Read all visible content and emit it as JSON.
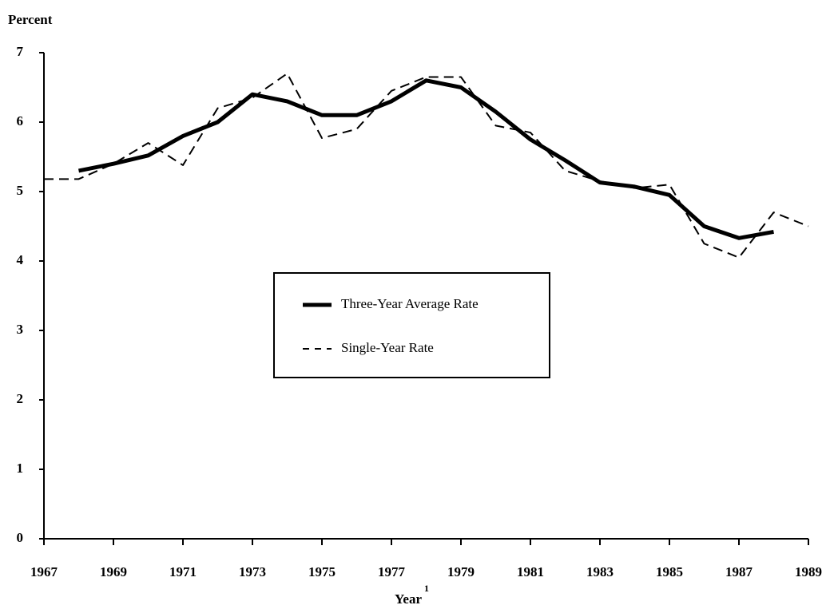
{
  "chart_data": {
    "type": "line",
    "y_label": "Percent",
    "x_label": "Year",
    "x_label_footnote": "1",
    "xlim": [
      1967,
      1989
    ],
    "xticks": [
      1967,
      1969,
      1971,
      1973,
      1975,
      1977,
      1979,
      1981,
      1983,
      1985,
      1987,
      1989
    ],
    "ylim": [
      0,
      7
    ],
    "yticks": [
      0,
      1,
      2,
      3,
      4,
      5,
      6,
      7
    ],
    "grid": false,
    "legend": "center",
    "series": [
      {
        "name": "Three-Year Average Rate",
        "color": "#000000",
        "style": "solid",
        "x": [
          1968,
          1969,
          1970,
          1971,
          1972,
          1973,
          1974,
          1975,
          1976,
          1977,
          1978,
          1979,
          1980,
          1981,
          1982,
          1983,
          1984,
          1985,
          1986,
          1987,
          1988
        ],
        "values": [
          5.3,
          5.4,
          5.52,
          5.8,
          6.0,
          6.4,
          6.3,
          6.1,
          6.1,
          6.3,
          6.6,
          6.5,
          6.15,
          5.75,
          5.45,
          5.13,
          5.07,
          4.95,
          4.5,
          4.33,
          4.42
        ]
      },
      {
        "name": "Single-Year Rate",
        "color": "#000000",
        "style": "dashed",
        "x": [
          1967,
          1968,
          1969,
          1970,
          1971,
          1972,
          1973,
          1974,
          1975,
          1976,
          1977,
          1978,
          1979,
          1980,
          1981,
          1982,
          1983,
          1984,
          1985,
          1986,
          1987,
          1988,
          1989
        ],
        "values": [
          5.18,
          5.18,
          5.4,
          5.7,
          5.38,
          6.2,
          6.35,
          6.7,
          5.77,
          5.9,
          6.45,
          6.65,
          6.65,
          5.95,
          5.85,
          5.3,
          5.15,
          5.05,
          5.1,
          4.25,
          4.05,
          4.7,
          4.5
        ]
      }
    ]
  }
}
